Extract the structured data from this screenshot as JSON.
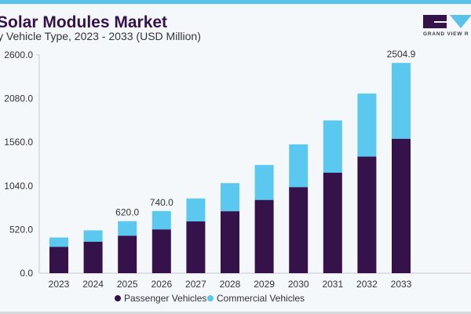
{
  "header": {
    "title": "Solar Modules Market",
    "subtitle": "y Vehicle Type, 2023 - 2033 (USD Million)",
    "logo_text": "GRAND VIEW R"
  },
  "colors": {
    "passenger": "#35124a",
    "commercial": "#5bc8f0",
    "accent": "#5bc2ec"
  },
  "chart_data": {
    "type": "bar",
    "stacked": true,
    "categories": [
      "2023",
      "2024",
      "2025",
      "2026",
      "2027",
      "2028",
      "2029",
      "2030",
      "2031",
      "2032",
      "2033"
    ],
    "series": [
      {
        "name": "Passenger Vehicles",
        "values": [
          314,
          374,
          447,
          522,
          617,
          738,
          873,
          1026,
          1197,
          1390,
          1602
        ]
      },
      {
        "name": "Commercial Vehicles",
        "values": [
          111,
          136,
          173,
          218,
          273,
          335,
          416,
          509,
          623,
          750,
          902.9
        ]
      }
    ],
    "data_labels": {
      "2025": "620.0",
      "2026": "740.0",
      "2033": "2504.9"
    },
    "yticks": [
      "0.0",
      "520.0",
      "1040.0",
      "1560.0",
      "2080.0",
      "2600.0"
    ],
    "ylim": [
      0,
      2600
    ],
    "grid": false,
    "legend": "bottom"
  }
}
